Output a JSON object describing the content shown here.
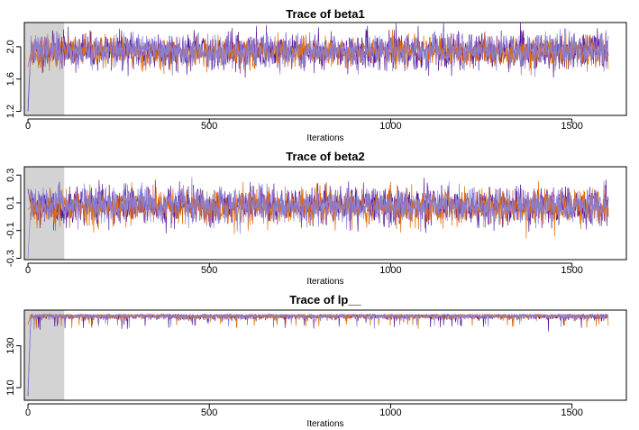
{
  "chart_data": [
    {
      "type": "line",
      "title": "Trace of  beta1",
      "xlabel": "Iterations",
      "ylabel": "",
      "xlim": [
        -10,
        1650
      ],
      "ylim": [
        1.15,
        2.3
      ],
      "x_ticks": [
        0,
        500,
        1000,
        1500
      ],
      "y_ticks": [
        1.2,
        1.6,
        2.0
      ],
      "warmup": [
        0,
        100
      ],
      "n_iter": 1600,
      "grid": false,
      "series": [
        {
          "color": "#5a1a96",
          "start": 1.2,
          "mean": 1.95,
          "sd": 0.11,
          "seed": 11
        },
        {
          "color": "#e06a00",
          "start": 1.75,
          "mean": 1.93,
          "sd": 0.09,
          "seed": 23
        },
        {
          "color": "#8a7fd6",
          "start": 1.3,
          "mean": 1.95,
          "sd": 0.1,
          "seed": 37
        }
      ]
    },
    {
      "type": "line",
      "title": "Trace of  beta2",
      "xlabel": "Iterations",
      "ylabel": "",
      "xlim": [
        -10,
        1650
      ],
      "ylim": [
        -0.31,
        0.36
      ],
      "x_ticks": [
        0,
        500,
        1000,
        1500
      ],
      "y_ticks": [
        -0.3,
        -0.1,
        0.1,
        0.3
      ],
      "warmup": [
        0,
        100
      ],
      "n_iter": 1600,
      "grid": false,
      "series": [
        {
          "color": "#5a1a96",
          "start": 0.2,
          "mean": 0.08,
          "sd": 0.07,
          "seed": 41
        },
        {
          "color": "#e06a00",
          "start": 0.05,
          "mean": 0.07,
          "sd": 0.065,
          "seed": 53
        },
        {
          "color": "#8a7fd6",
          "start": -0.3,
          "mean": 0.08,
          "sd": 0.06,
          "seed": 67
        }
      ]
    },
    {
      "type": "line",
      "title": "Trace of  lp__",
      "xlabel": "Iterations",
      "ylabel": "",
      "xlim": [
        -10,
        1650
      ],
      "ylim": [
        104,
        147
      ],
      "x_ticks": [
        0,
        500,
        1000,
        1500
      ],
      "y_ticks": [
        110,
        130
      ],
      "warmup": [
        0,
        100
      ],
      "n_iter": 1600,
      "grid": false,
      "series": [
        {
          "color": "#5a1a96",
          "start": 106,
          "mean": 145,
          "sd": 1.0,
          "seed": 71,
          "lp": true
        },
        {
          "color": "#e06a00",
          "start": 140,
          "mean": 145,
          "sd": 0.9,
          "seed": 83,
          "lp": true
        },
        {
          "color": "#8a7fd6",
          "start": 108,
          "mean": 145,
          "sd": 0.9,
          "seed": 97,
          "lp": true
        }
      ]
    }
  ]
}
